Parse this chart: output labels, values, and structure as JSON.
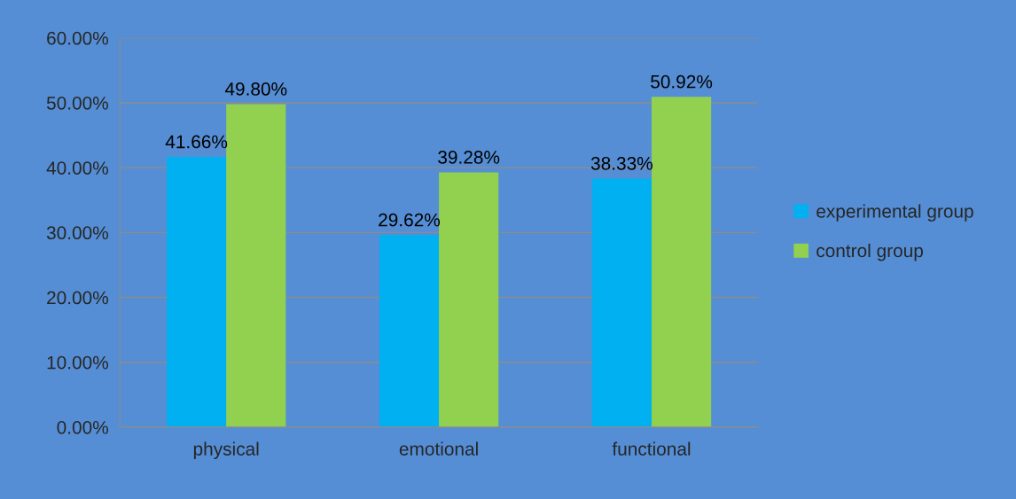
{
  "chart_data": {
    "type": "bar",
    "categories": [
      "physical",
      "emotional",
      "functional"
    ],
    "series": [
      {
        "name": "experimental group",
        "color": "#00b0f0",
        "values": [
          41.66,
          29.62,
          38.33
        ],
        "value_labels": [
          "41.66%",
          "29.62%",
          "38.33%"
        ]
      },
      {
        "name": "control group",
        "color": "#92d050",
        "values": [
          49.8,
          39.28,
          50.92
        ],
        "value_labels": [
          "49.80%",
          "39.28%",
          "50.92%"
        ]
      }
    ],
    "ylim": [
      0,
      60
    ],
    "yticks": [
      {
        "value": 0,
        "label": "0.00%"
      },
      {
        "value": 10,
        "label": "10.00%"
      },
      {
        "value": 20,
        "label": "20.00%"
      },
      {
        "value": 30,
        "label": "30.00%"
      },
      {
        "value": 40,
        "label": "40.00%"
      },
      {
        "value": 50,
        "label": "50.00%"
      },
      {
        "value": 60,
        "label": "60.00%"
      }
    ],
    "grid": "y",
    "legend": "right"
  }
}
